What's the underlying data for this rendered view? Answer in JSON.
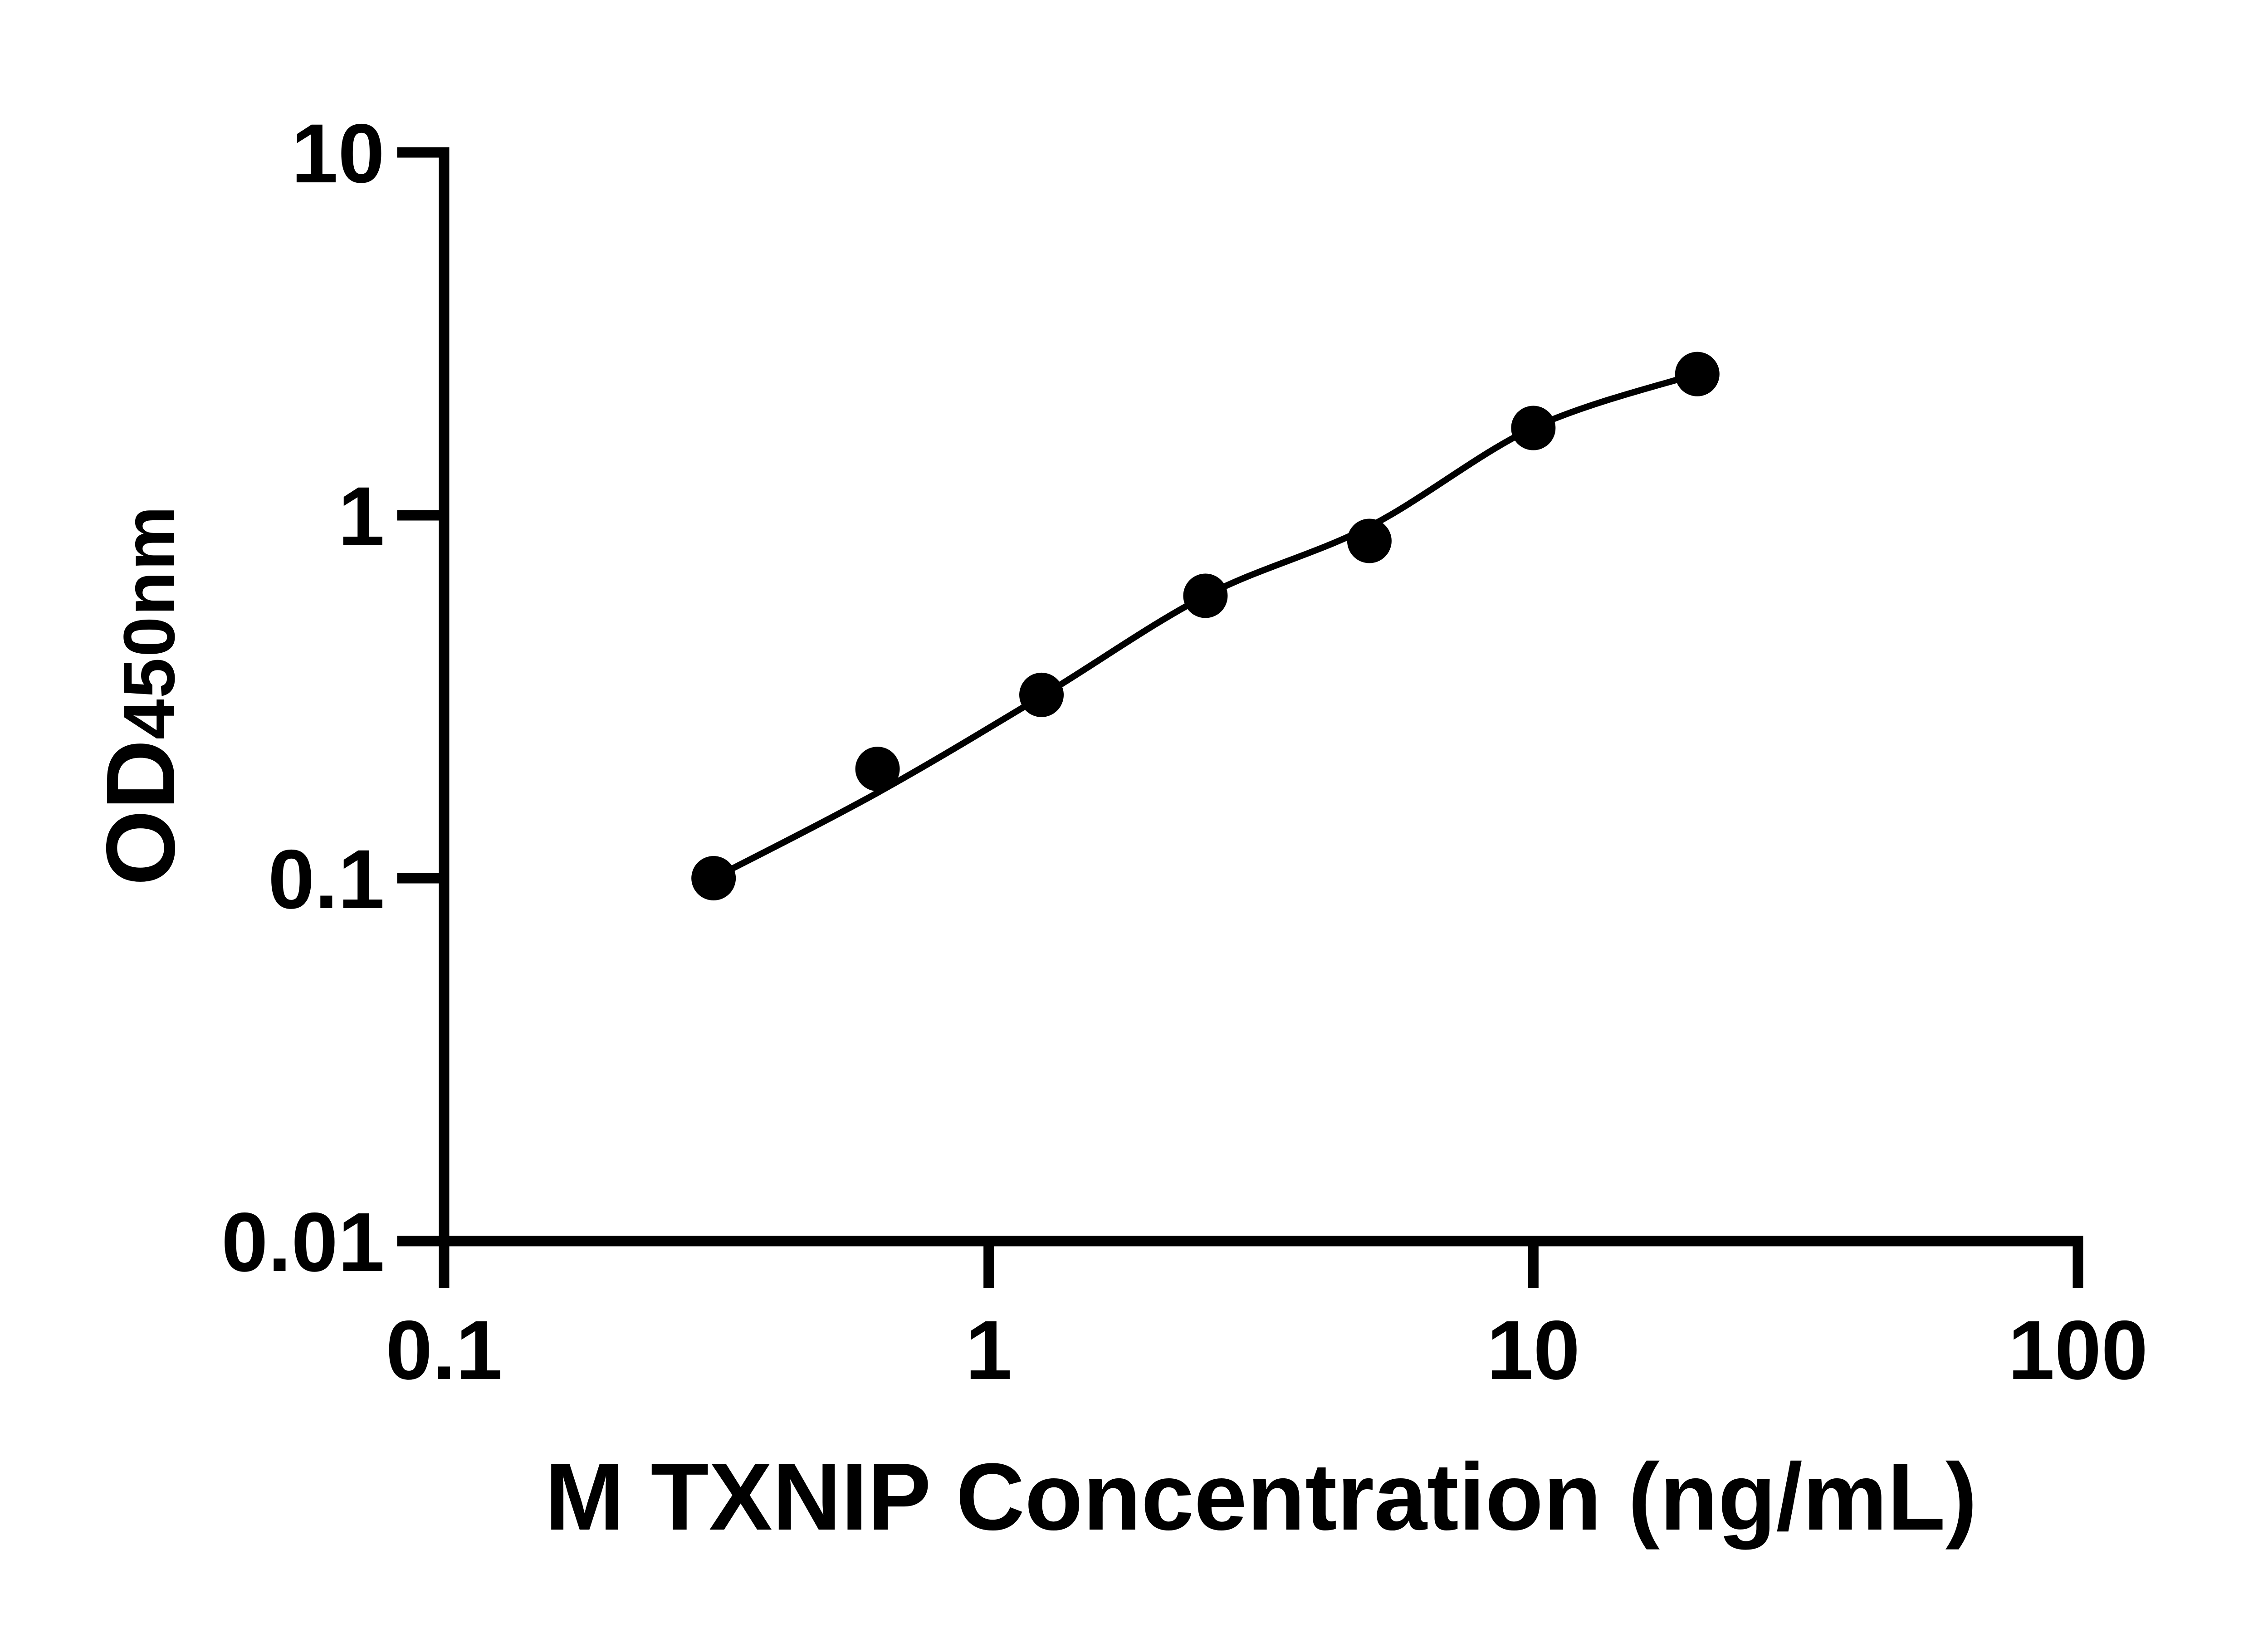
{
  "figure": {
    "background_color": "#ffffff",
    "ink_color": "#000000"
  },
  "chart_data": {
    "type": "scatter",
    "title": "",
    "xlabel": "M TXNIP Concentration (ng/mL)",
    "ylabel_main": "OD",
    "ylabel_sub": "450nm",
    "x_scale": "log10",
    "y_scale": "log10",
    "xlim": [
      0.1,
      100
    ],
    "ylim": [
      0.01,
      10
    ],
    "grid": false,
    "legend": "none",
    "x_ticks": {
      "values": [
        0.1,
        1,
        10,
        100
      ],
      "labels": [
        "0.1",
        "1",
        "10",
        "100"
      ]
    },
    "y_ticks": {
      "values": [
        10,
        1,
        0.1,
        0.01
      ],
      "labels": [
        "10",
        "1",
        "0.1",
        "0.01"
      ]
    },
    "series": [
      {
        "name": "standard-curve-points",
        "marker": "filled-circle",
        "color": "#000000",
        "x": [
          0.3125,
          0.625,
          1.25,
          2.5,
          5,
          10,
          20
        ],
        "od": [
          0.1,
          0.2,
          0.32,
          0.6,
          0.85,
          1.74,
          2.45
        ]
      }
    ],
    "fit_curve": {
      "name": "four-parameter-logistic-fit",
      "color": "#000000",
      "x": [
        0.3125,
        0.625,
        1.25,
        2.5,
        5,
        10,
        20
      ],
      "od": [
        0.1,
        0.172,
        0.317,
        0.6,
        0.931,
        1.743,
        2.455
      ]
    }
  }
}
